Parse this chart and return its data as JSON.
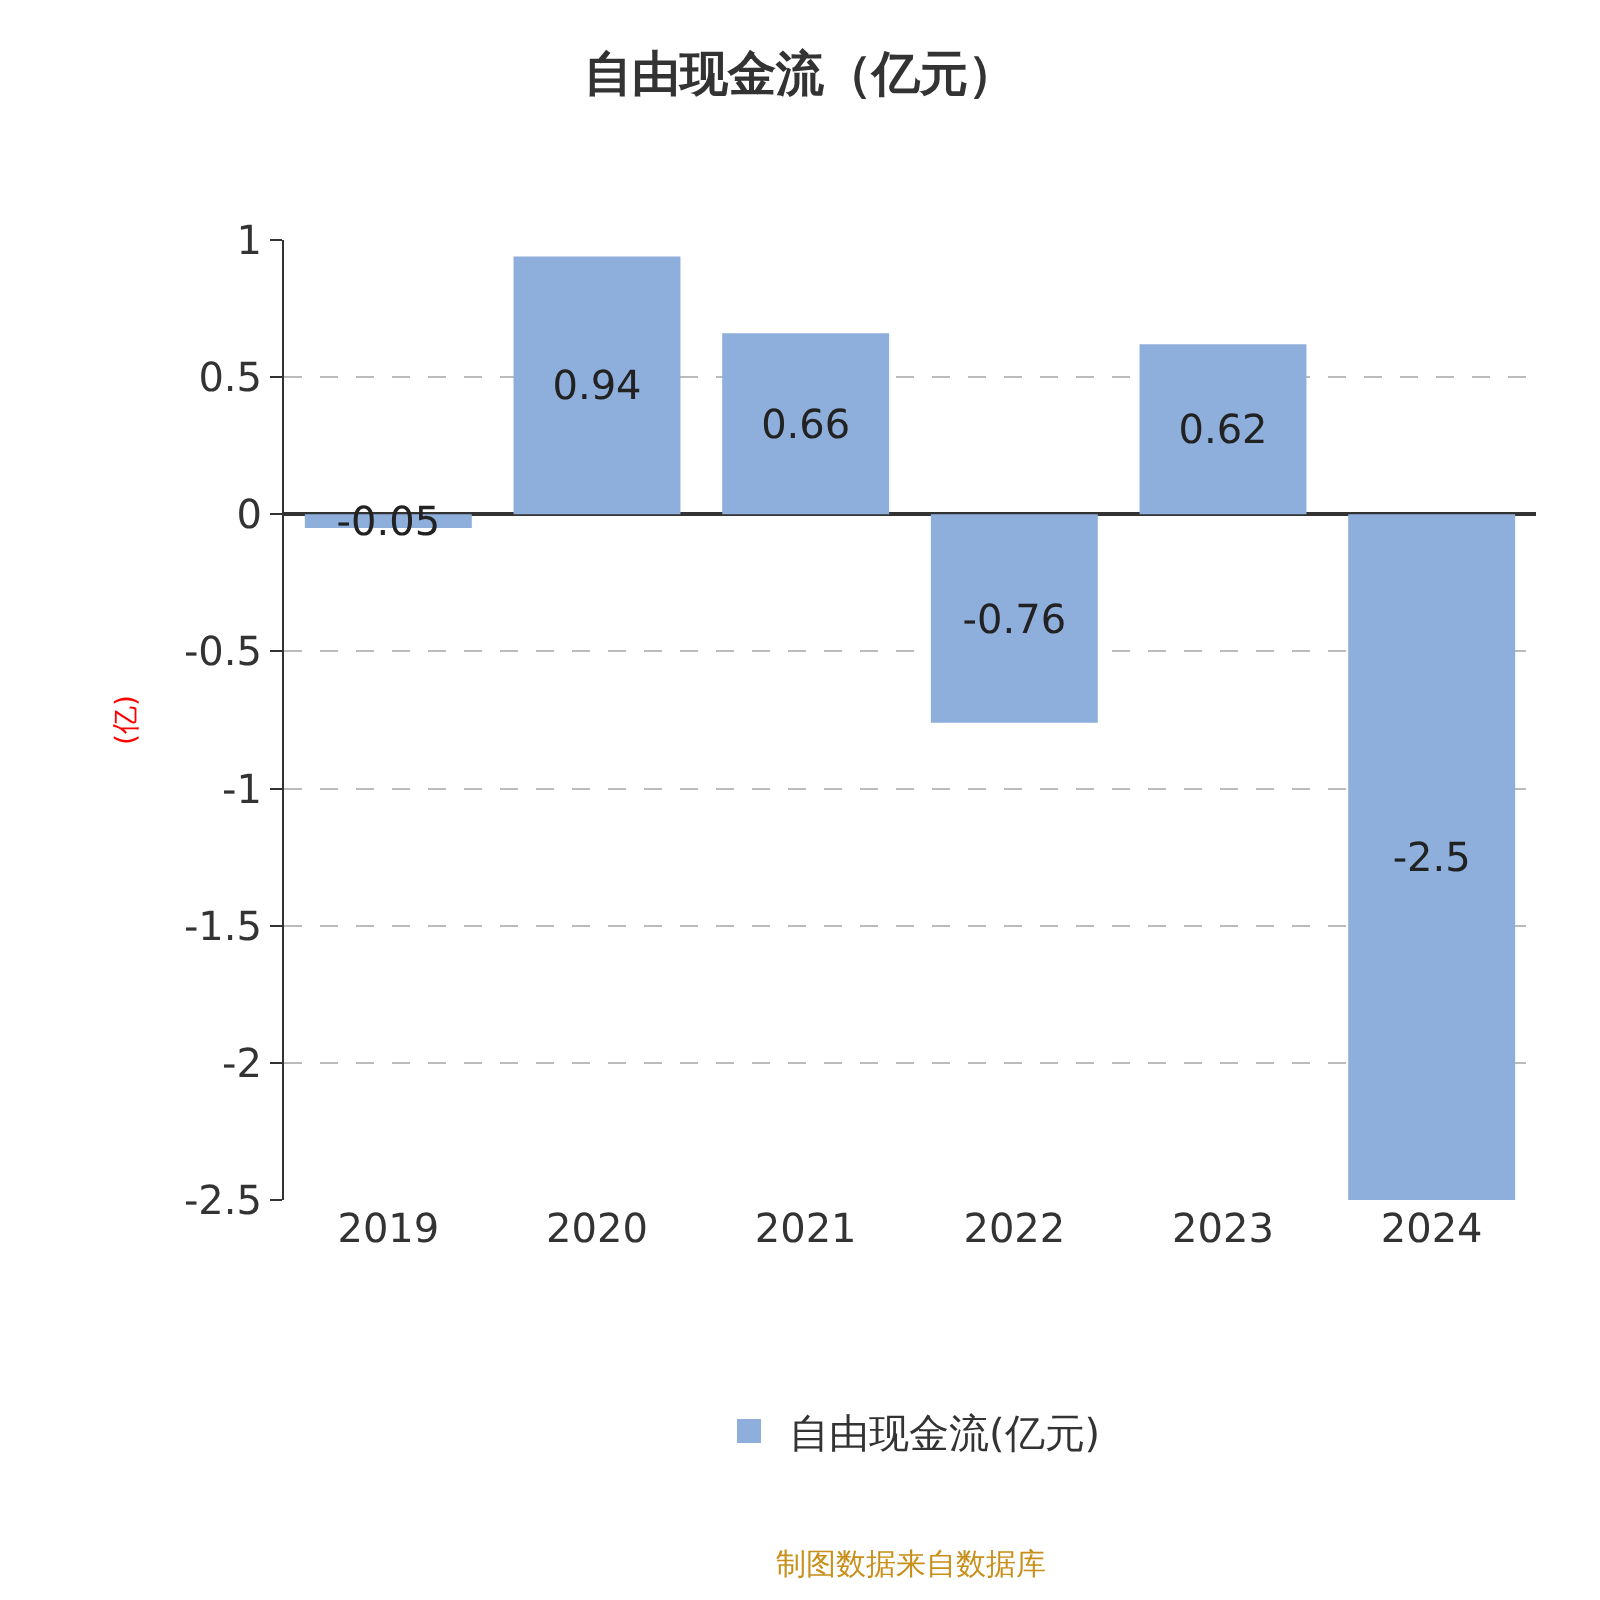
{
  "chart_data": {
    "type": "bar",
    "title": "自由现金流（亿元）",
    "ylabel": "(亿)",
    "categories": [
      "2019",
      "2020",
      "2021",
      "2022",
      "2023",
      "2024"
    ],
    "series": [
      {
        "name": "自由现金流(亿元)",
        "color": "#8eaedb",
        "values": [
          -0.05,
          0.94,
          0.66,
          -0.76,
          0.62,
          -2.5
        ]
      }
    ],
    "ylim": [
      -2.5,
      1
    ],
    "yticks": [
      -2.5,
      -2,
      -1.5,
      -1,
      -0.5,
      0,
      0.5,
      1
    ],
    "grid": "y",
    "legend": "bottom",
    "data_labels": true,
    "annotations": [
      "制图数据来自数据库"
    ]
  }
}
